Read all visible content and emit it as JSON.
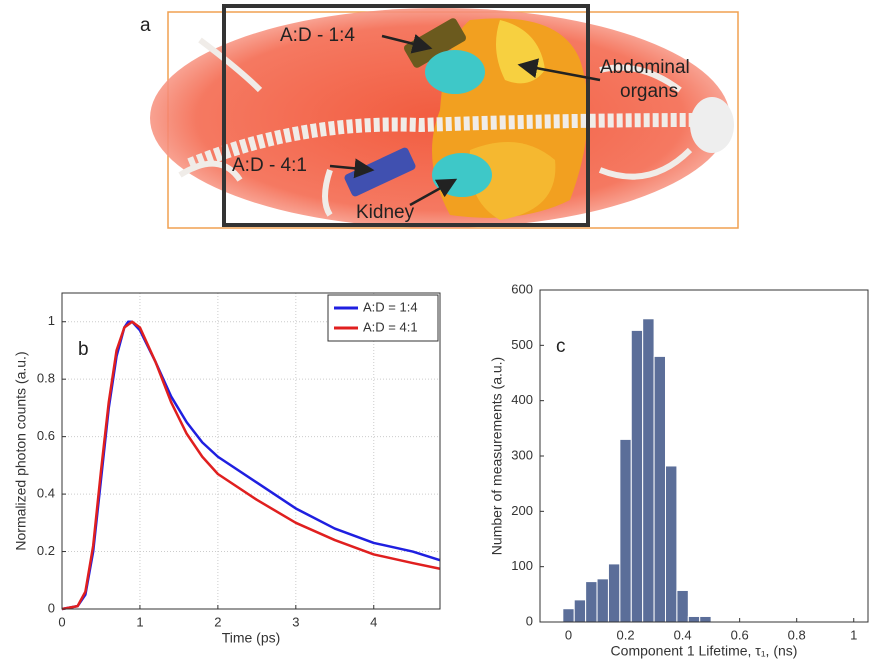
{
  "panel_a": {
    "label": "a",
    "annotations": [
      "A:D - 1:4",
      "A:D - 4:1",
      "Abdominal",
      "organs",
      "Kidney"
    ]
  },
  "chart_data": [
    {
      "type": "line",
      "panel_label": "b",
      "x_label": "Time (ps)",
      "y_label": "Normalized photon counts (a.u.)",
      "x": [
        0,
        0.2,
        0.3,
        0.4,
        0.5,
        0.6,
        0.7,
        0.8,
        0.85,
        0.9,
        1.0,
        1.2,
        1.4,
        1.6,
        1.8,
        2.0,
        2.5,
        3.0,
        3.5,
        4.0,
        4.5,
        4.85
      ],
      "series": [
        {
          "name": "A:D = 1:4",
          "color": "#1f1fe0",
          "values": [
            0,
            0.01,
            0.05,
            0.2,
            0.45,
            0.7,
            0.88,
            0.98,
            1.0,
            1.0,
            0.97,
            0.86,
            0.74,
            0.65,
            0.58,
            0.53,
            0.44,
            0.35,
            0.28,
            0.23,
            0.2,
            0.17
          ]
        },
        {
          "name": "A:D = 4:1",
          "color": "#e01f1f",
          "values": [
            0,
            0.01,
            0.06,
            0.22,
            0.48,
            0.72,
            0.9,
            0.98,
            0.99,
            1.0,
            0.98,
            0.86,
            0.72,
            0.61,
            0.53,
            0.47,
            0.38,
            0.3,
            0.24,
            0.19,
            0.16,
            0.14
          ]
        }
      ],
      "xlim": [
        0,
        4.85
      ],
      "ylim": [
        0,
        1.1
      ],
      "xticks": [
        0,
        1,
        2,
        3,
        4
      ],
      "yticks": [
        0,
        0.2,
        0.4,
        0.6,
        0.8,
        1
      ],
      "grid": true,
      "legend": "top-right"
    },
    {
      "type": "histogram",
      "panel_label": "c",
      "x_label": "Component 1 Lifetime, τ₁, (ns)",
      "y_label": "Number of measurements (a.u.)",
      "bins": [
        -0.02,
        0.02,
        0.06,
        0.1,
        0.14,
        0.18,
        0.22,
        0.26,
        0.3,
        0.34,
        0.38,
        0.42,
        0.46,
        0.5
      ],
      "values": [
        24,
        40,
        73,
        78,
        105,
        330,
        527,
        548,
        480,
        282,
        57,
        10,
        10
      ],
      "color": "#5b6e99",
      "xlim": [
        -0.1,
        1.05
      ],
      "ylim": [
        0,
        600
      ],
      "xticks": [
        0,
        0.2,
        0.4,
        0.6,
        0.8,
        1
      ],
      "yticks": [
        0,
        100,
        200,
        300,
        400,
        500,
        600
      ],
      "grid": false
    }
  ]
}
